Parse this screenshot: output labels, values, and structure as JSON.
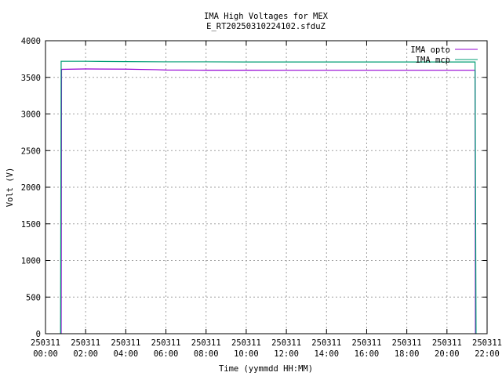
{
  "chart_data": {
    "type": "line",
    "title_line1": "IMA High Voltages for MEX",
    "title_line2": "E_RT20250310224102.sfduZ",
    "xlabel": "Time (yymmdd HH:MM)",
    "ylabel": "Volt (V)",
    "x_unit": "hours since 250311 00:00",
    "xlim": [
      0,
      22
    ],
    "ylim": [
      0,
      4000
    ],
    "grid": true,
    "legend_position": "top-right",
    "x_ticks": [
      {
        "value": 0,
        "date": "250311",
        "time": "00:00"
      },
      {
        "value": 2,
        "date": "250311",
        "time": "02:00"
      },
      {
        "value": 4,
        "date": "250311",
        "time": "04:00"
      },
      {
        "value": 6,
        "date": "250311",
        "time": "06:00"
      },
      {
        "value": 8,
        "date": "250311",
        "time": "08:00"
      },
      {
        "value": 10,
        "date": "250311",
        "time": "10:00"
      },
      {
        "value": 12,
        "date": "250311",
        "time": "12:00"
      },
      {
        "value": 14,
        "date": "250311",
        "time": "14:00"
      },
      {
        "value": 16,
        "date": "250311",
        "time": "16:00"
      },
      {
        "value": 18,
        "date": "250311",
        "time": "18:00"
      },
      {
        "value": 20,
        "date": "250311",
        "time": "20:00"
      },
      {
        "value": 22,
        "date": "250311",
        "time": "22:00"
      }
    ],
    "y_ticks": [
      "0",
      "500",
      "1000",
      "1500",
      "2000",
      "2500",
      "3000",
      "3500",
      "4000"
    ],
    "series": [
      {
        "name": "IMA opto",
        "color": "#9400d3",
        "x": [
          0.78,
          0.8,
          2.0,
          4.0,
          5.5,
          6.0,
          8.0,
          10.0,
          12.0,
          14.0,
          16.0,
          18.0,
          20.0,
          21.4,
          21.42
        ],
        "y": [
          0,
          3610,
          3615,
          3612,
          3605,
          3600,
          3598,
          3598,
          3597,
          3597,
          3597,
          3597,
          3597,
          3597,
          0
        ]
      },
      {
        "name": "IMA mcp",
        "color": "#009e73",
        "x": [
          0.75,
          0.78,
          2.0,
          4.0,
          6.0,
          8.0,
          10.0,
          12.0,
          14.0,
          16.0,
          18.0,
          20.0,
          21.4,
          21.45
        ],
        "y": [
          0,
          3720,
          3720,
          3715,
          3712,
          3712,
          3710,
          3710,
          3710,
          3710,
          3710,
          3710,
          3710,
          0
        ]
      }
    ]
  }
}
